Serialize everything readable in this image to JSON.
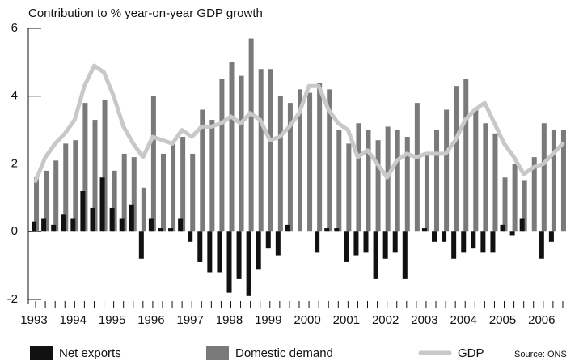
{
  "chart_data": {
    "type": "bar-line",
    "title": "Contribution to % year-on-year GDP growth",
    "source": "Source: ONS",
    "categories": [
      "1993",
      null,
      null,
      null,
      "1994",
      null,
      null,
      null,
      "1995",
      null,
      null,
      null,
      "1996",
      null,
      null,
      null,
      "1997",
      null,
      null,
      null,
      "1998",
      null,
      null,
      null,
      "1999",
      null,
      null,
      null,
      "2000",
      null,
      null,
      null,
      "2001",
      null,
      null,
      null,
      "2002",
      null,
      null,
      null,
      "2003",
      null,
      null,
      null,
      "2004",
      null,
      null,
      null,
      "2005",
      null,
      null,
      null,
      "2006",
      null,
      null
    ],
    "series": [
      {
        "name": "Net exports",
        "type": "bar",
        "color": "#111111",
        "values": [
          0.3,
          0.4,
          0.2,
          0.5,
          0.4,
          1.2,
          0.7,
          1.6,
          0.7,
          0.4,
          0.8,
          -0.8,
          0.4,
          0.1,
          0.1,
          0.4,
          -0.3,
          -0.9,
          -1.2,
          -1.2,
          -1.8,
          -1.4,
          -1.9,
          -1.1,
          -0.5,
          -0.7,
          0.2,
          0,
          0,
          -0.6,
          0.1,
          0.1,
          -0.9,
          -0.7,
          -0.6,
          -1.4,
          -0.8,
          -0.6,
          -1.4,
          0,
          0.1,
          -0.3,
          -0.3,
          -0.8,
          -0.6,
          -0.5,
          -0.6,
          -0.6,
          0.2,
          -0.1,
          0.4,
          0,
          -0.8,
          -0.3,
          0
        ]
      },
      {
        "name": "Domestic demand",
        "type": "bar",
        "color": "#7a7a7a",
        "values": [
          1.6,
          1.8,
          2.1,
          2.6,
          2.7,
          3.8,
          3.3,
          3.9,
          1.8,
          2.3,
          2.2,
          1.3,
          4.0,
          2.3,
          2.6,
          2.8,
          2.3,
          3.6,
          3.3,
          4.5,
          5.0,
          4.6,
          5.7,
          4.8,
          4.8,
          4.0,
          3.8,
          4.2,
          4.1,
          4.4,
          4.2,
          3.0,
          2.6,
          3.2,
          3.0,
          2.7,
          3.1,
          3.0,
          2.8,
          3.8,
          2.3,
          3.0,
          3.6,
          4.3,
          4.5,
          3.6,
          3.2,
          2.9,
          1.6,
          2.0,
          1.5,
          2.2,
          3.2,
          3.0,
          3.0
        ]
      },
      {
        "name": "GDP",
        "type": "line",
        "color": "#c8c8c8",
        "values": [
          1.5,
          2.2,
          2.6,
          2.9,
          3.3,
          4.3,
          4.9,
          4.7,
          4.0,
          3.1,
          2.6,
          2.2,
          2.8,
          2.7,
          2.6,
          3.0,
          2.8,
          3.1,
          3.1,
          3.2,
          3.4,
          3.2,
          3.5,
          3.3,
          2.7,
          2.8,
          3.1,
          3.5,
          4.3,
          4.3,
          3.6,
          3.2,
          3.0,
          2.2,
          2.4,
          2.0,
          1.6,
          2.1,
          2.3,
          2.2,
          2.3,
          2.3,
          2.3,
          2.7,
          3.3,
          3.6,
          3.8,
          3.2,
          2.6,
          2.2,
          1.7,
          1.9,
          2.0,
          2.3,
          2.6
        ]
      }
    ],
    "ylim": [
      -2,
      6
    ],
    "yticks": [
      -2,
      0,
      2,
      4,
      6
    ]
  }
}
